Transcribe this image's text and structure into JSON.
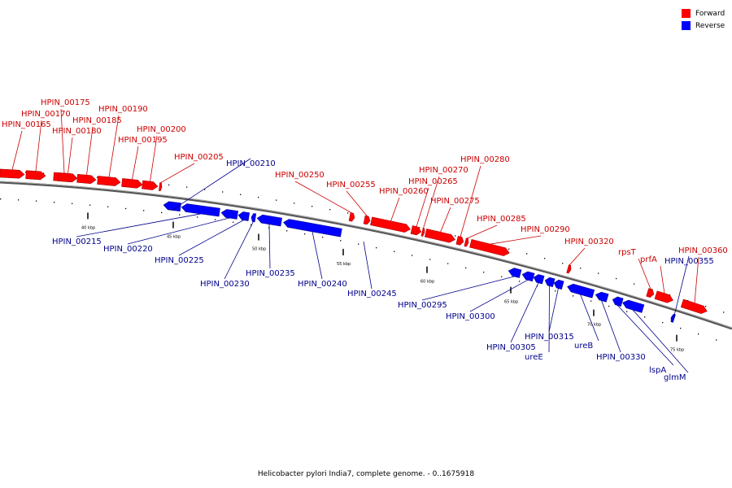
{
  "legend": {
    "forward": {
      "label": "Forward",
      "color": "#ff0000"
    },
    "reverse": {
      "label": "Reverse",
      "color": "#0000ff"
    }
  },
  "caption": "Helicobacter pylori India7, complete genome. - 0..1675918",
  "ticks": [
    "40 kbp",
    "45 kbp",
    "50 kbp",
    "55 kbp",
    "60 kbp",
    "65 kbp",
    "70 kbp",
    "75 kbp"
  ],
  "forward_genes": [
    "HPIN_00165",
    "HPIN_00170",
    "HPIN_00175",
    "HPIN_00180",
    "HPIN_00185",
    "HPIN_00190",
    "HPIN_00195",
    "HPIN_00200",
    "HPIN_00205",
    "HPIN_00250",
    "HPIN_00255",
    "HPIN_00260",
    "HPIN_00265",
    "HPIN_00270",
    "HPIN_00275",
    "HPIN_00280",
    "HPIN_00285",
    "HPIN_00290",
    "HPIN_00320",
    "rpsT",
    "prfA",
    "HPIN_00360"
  ],
  "reverse_genes": [
    "HPIN_00210",
    "HPIN_00215",
    "HPIN_00220",
    "HPIN_00225",
    "HPIN_00230",
    "HPIN_00235",
    "HPIN_00240",
    "HPIN_00245",
    "HPIN_00295",
    "HPIN_00300",
    "HPIN_00305",
    "ureE",
    "HPIN_00315",
    "ureB",
    "HPIN_00330",
    "lspA",
    "glmM",
    "HPIN_00355"
  ]
}
